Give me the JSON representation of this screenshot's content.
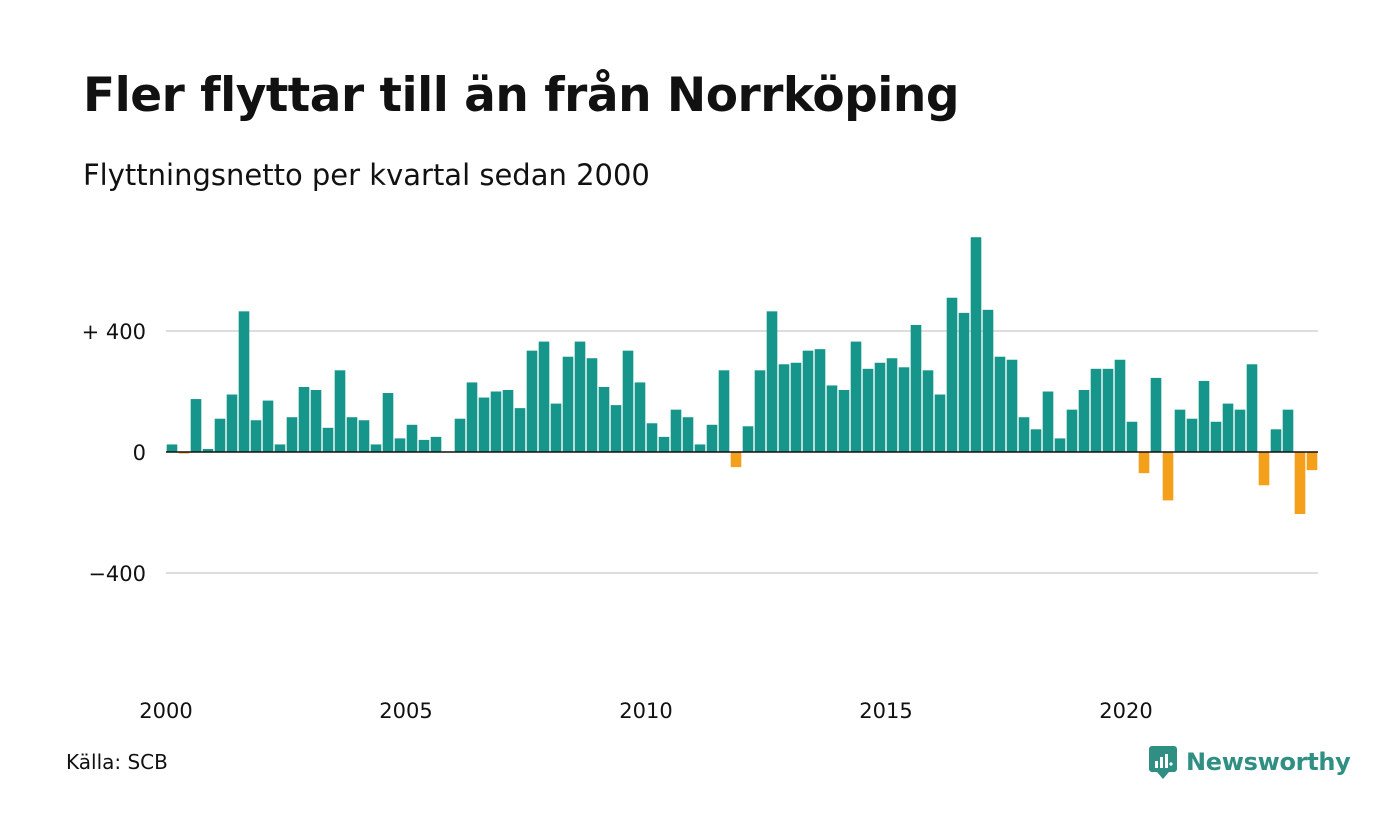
{
  "header": {
    "title": "Fler flyttar till än från Norrköping",
    "subtitle": "Flyttningsnetto per kvartal sedan 2000"
  },
  "footer": {
    "source": "Källa: SCB",
    "brand": "Newsworthy",
    "brand_icon": "newsworthy-logo-icon"
  },
  "colors": {
    "positive": "#16968a",
    "negative": "#f5a01b",
    "grid": "#dddddd",
    "baseline": "#111111",
    "brand": "#2f8f83"
  },
  "chart_data": {
    "type": "bar",
    "title": "Fler flyttar till än från Norrköping",
    "subtitle": "Flyttningsnetto per kvartal sedan 2000",
    "xlabel": "",
    "ylabel": "",
    "x_start": "2000 Q1",
    "x_ticks": [
      "2000",
      "2005",
      "2010",
      "2015",
      "2020"
    ],
    "y_ticks": [
      {
        "value": 400,
        "label": "+ 400"
      },
      {
        "value": 0,
        "label": "0"
      },
      {
        "value": -400,
        "label": "−400"
      }
    ],
    "ylim": [
      -800,
      730
    ],
    "grid": true,
    "legend": "none",
    "values": [
      25,
      -5,
      175,
      10,
      110,
      190,
      465,
      105,
      170,
      25,
      115,
      215,
      205,
      80,
      270,
      115,
      105,
      25,
      195,
      45,
      90,
      40,
      50,
      0,
      110,
      230,
      180,
      200,
      205,
      145,
      335,
      365,
      160,
      315,
      365,
      310,
      215,
      155,
      335,
      230,
      95,
      50,
      140,
      115,
      25,
      90,
      270,
      -50,
      85,
      270,
      465,
      290,
      295,
      335,
      340,
      220,
      205,
      365,
      275,
      295,
      310,
      280,
      420,
      270,
      190,
      510,
      460,
      710,
      470,
      315,
      305,
      115,
      75,
      200,
      45,
      140,
      205,
      275,
      275,
      305,
      100,
      -70,
      245,
      -160,
      140,
      110,
      235,
      100,
      160,
      140,
      290,
      -110,
      75,
      140,
      -205,
      -60
    ]
  }
}
